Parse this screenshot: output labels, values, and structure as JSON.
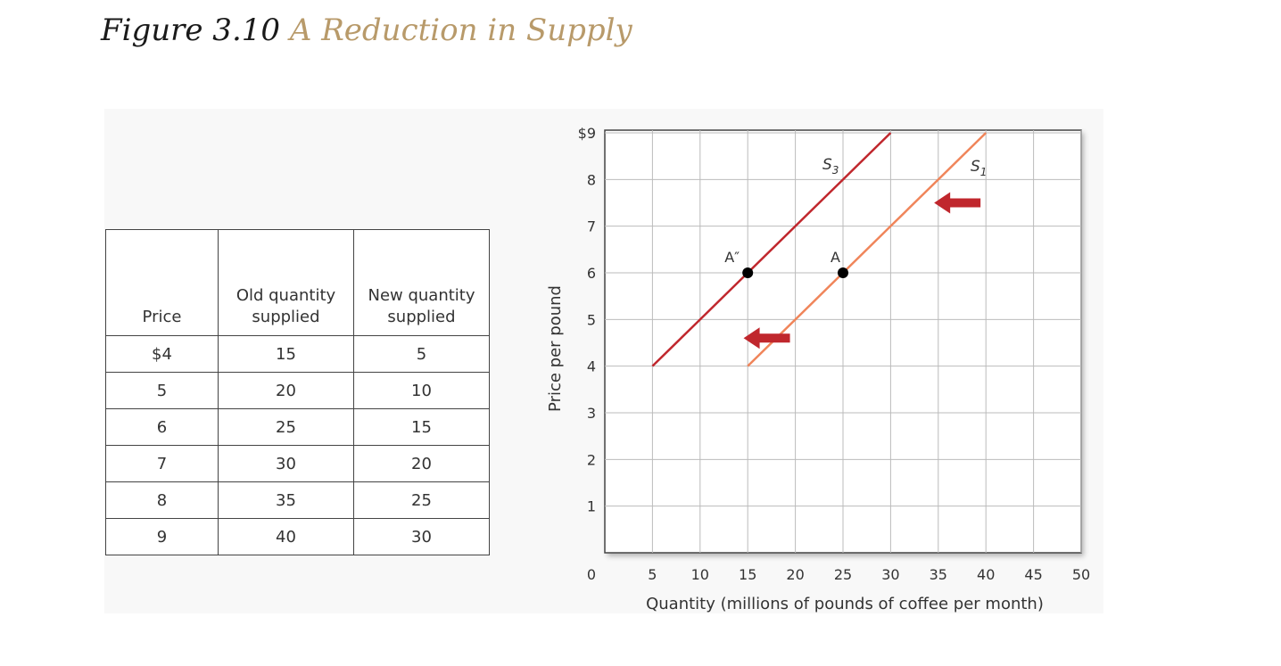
{
  "figure": {
    "number": "Figure 3.10",
    "title": "A Reduction in Supply"
  },
  "table": {
    "headers": [
      "Price",
      "Old quantity supplied",
      "New quantity supplied"
    ],
    "rows": [
      [
        "$4",
        "15",
        "5"
      ],
      [
        "5",
        "20",
        "10"
      ],
      [
        "6",
        "25",
        "15"
      ],
      [
        "7",
        "30",
        "20"
      ],
      [
        "8",
        "35",
        "25"
      ],
      [
        "9",
        "40",
        "30"
      ]
    ]
  },
  "chart_data": {
    "type": "line",
    "xlabel": "Quantity (millions of pounds of coffee per month)",
    "ylabel": "Price per pound",
    "xlim": [
      0,
      50
    ],
    "ylim": [
      0,
      9
    ],
    "x_ticks": [
      "0",
      "5",
      "10",
      "15",
      "20",
      "25",
      "30",
      "35",
      "40",
      "45",
      "50"
    ],
    "y_ticks": [
      "$9",
      "8",
      "7",
      "6",
      "5",
      "4",
      "3",
      "2",
      "1"
    ],
    "grid": true,
    "series": [
      {
        "name": "S1",
        "label_main": "S",
        "label_sub": "1",
        "color": "#f0855a",
        "points": [
          [
            15,
            4
          ],
          [
            20,
            5
          ],
          [
            25,
            6
          ],
          [
            30,
            7
          ],
          [
            35,
            8
          ],
          [
            40,
            9
          ]
        ]
      },
      {
        "name": "S3",
        "label_main": "S",
        "label_sub": "3",
        "color": "#c0272d",
        "points": [
          [
            5,
            4
          ],
          [
            10,
            5
          ],
          [
            15,
            6
          ],
          [
            20,
            7
          ],
          [
            25,
            8
          ],
          [
            30,
            9
          ]
        ]
      }
    ],
    "annotations": [
      {
        "label": "A",
        "x": 25,
        "y": 6
      },
      {
        "label": "A″",
        "x": 15,
        "y": 6
      }
    ],
    "arrows": [
      {
        "direction": "left",
        "at_x": 37,
        "at_y": 7.5
      },
      {
        "direction": "left",
        "at_x": 17,
        "at_y": 4.6
      }
    ],
    "colors": {
      "arrow": "#c0272d",
      "point": "#000000",
      "grid": "#bbbbbb"
    }
  }
}
